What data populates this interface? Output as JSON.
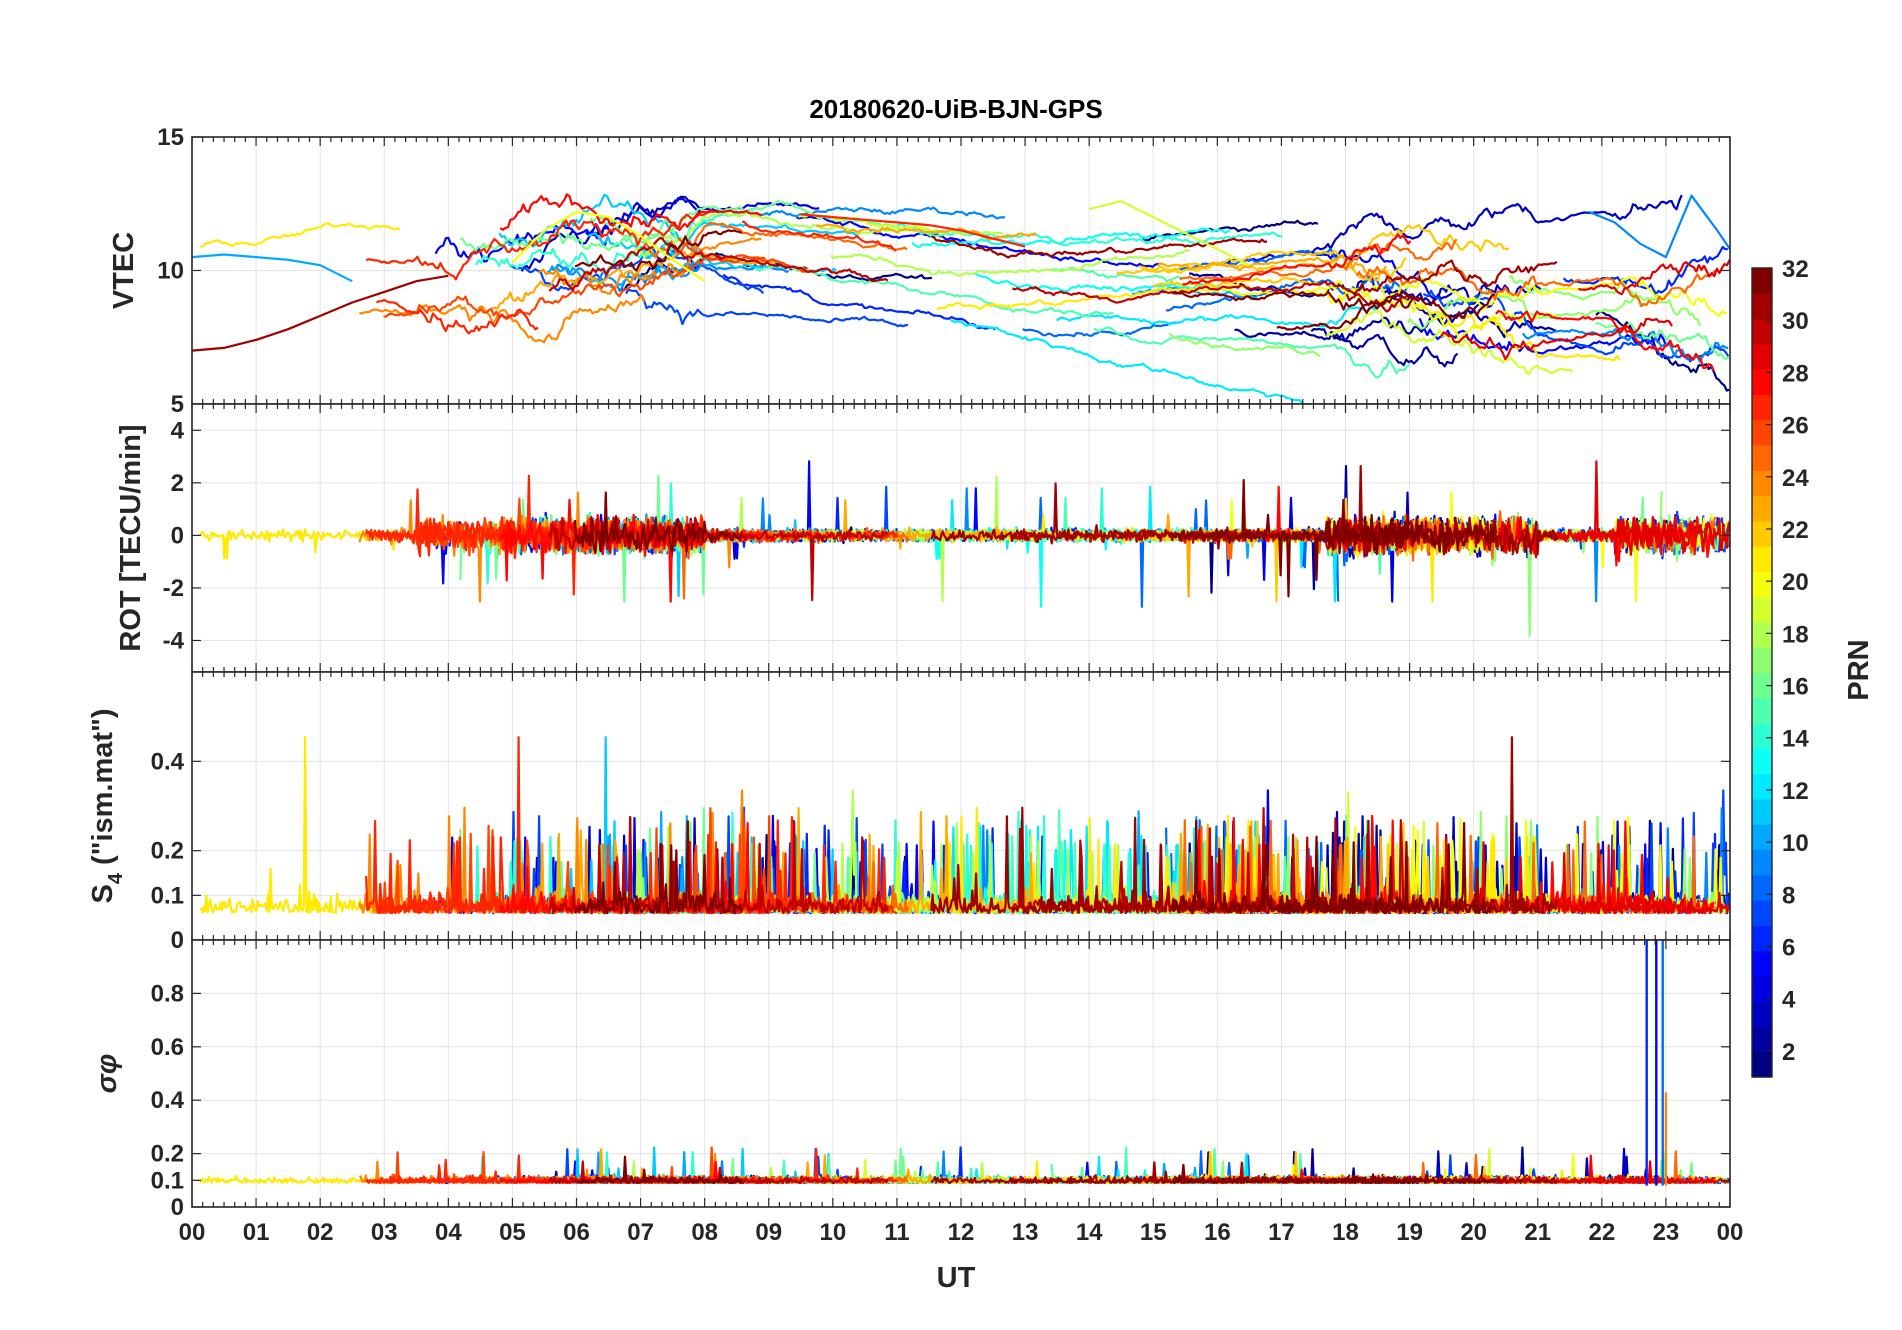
{
  "chart_data": {
    "title": "20180620-UiB-BJN-GPS",
    "type": "line",
    "xlabel": "UT",
    "x_tick_labels": [
      "00",
      "01",
      "02",
      "03",
      "04",
      "05",
      "06",
      "07",
      "08",
      "09",
      "10",
      "11",
      "12",
      "13",
      "14",
      "15",
      "16",
      "17",
      "18",
      "19",
      "20",
      "21",
      "22",
      "23",
      "00"
    ],
    "xlim_hours": [
      0,
      24
    ],
    "grid": true,
    "colorbar": {
      "label": "PRN",
      "range": [
        1,
        32
      ],
      "colormap": "jet",
      "tick_labels": [
        "2",
        "4",
        "6",
        "8",
        "10",
        "12",
        "14",
        "16",
        "18",
        "20",
        "22",
        "24",
        "26",
        "28",
        "30",
        "32"
      ]
    },
    "panels": [
      {
        "id": "vtec",
        "ylabel": "VTEC",
        "ylim": [
          5,
          15
        ],
        "y_ticks": [
          5,
          10,
          15
        ],
        "y_tick_labels": [
          "5",
          "10",
          "15"
        ],
        "description_series": [
          {
            "prn": 10,
            "x": [
              0,
              0.5,
              1,
              1.5,
              2,
              2.5
            ],
            "y": [
              10.5,
              10.6,
              10.5,
              10.4,
              10.2,
              9.6
            ]
          },
          {
            "prn": 31,
            "x": [
              0,
              0.5,
              1,
              1.5,
              2,
              2.5,
              3,
              3.5,
              4
            ],
            "y": [
              7.0,
              7.1,
              7.4,
              7.8,
              8.3,
              8.8,
              9.2,
              9.6,
              9.8
            ]
          },
          {
            "prn": 20,
            "x": [
              5,
              5.5,
              6,
              6.5,
              7,
              7.5,
              8
            ],
            "y": [
              10.3,
              11.5,
              12.2,
              12.0,
              11.3,
              10.4,
              9.6
            ]
          },
          {
            "prn": 27,
            "x": [
              9.5,
              10,
              10.5,
              11,
              11.5,
              12,
              12.5,
              13
            ],
            "y": [
              12.1,
              12.0,
              11.9,
              11.8,
              11.7,
              11.5,
              11.2,
              10.9
            ]
          },
          {
            "prn": 19,
            "x": [
              14,
              14.5,
              15,
              15.5,
              16,
              16.5
            ],
            "y": [
              12.3,
              12.6,
              12.0,
              11.4,
              10.8,
              10.2
            ]
          },
          {
            "prn": 9,
            "x": [
              21.8,
              22.2,
              22.6,
              23.0,
              23.4,
              23.8,
              24
            ],
            "y": [
              12.2,
              11.8,
              11.0,
              10.5,
              12.8,
              11.5,
              10.8
            ]
          }
        ]
      },
      {
        "id": "rot",
        "ylabel": "ROT [TECU/min]",
        "ylim": [
          -5.2,
          5.0
        ],
        "y_ticks": [
          -4,
          -2,
          0,
          2,
          4
        ],
        "y_tick_labels": [
          "-4",
          "-2",
          "0",
          "2",
          "4"
        ]
      },
      {
        "id": "s4",
        "ylabel": "S4 (\"ism.mat\")",
        "ylim": [
          0,
          0.6
        ],
        "y_ticks": [
          0,
          0.1,
          0.2,
          0.4
        ],
        "y_tick_labels": [
          "0",
          "0.1",
          "0.2",
          "0.4"
        ]
      },
      {
        "id": "sigma_phi",
        "ylabel": "σφ",
        "ylim": [
          0,
          1
        ],
        "y_ticks": [
          0,
          0.1,
          0.2,
          0.4,
          0.6,
          0.8
        ],
        "y_tick_labels": [
          "0",
          "0.1",
          "0.2",
          "0.4",
          "0.6",
          "0.8"
        ],
        "notable_spikes": [
          {
            "x": 22.7,
            "y": 1.0,
            "prn": 6
          },
          {
            "x": 22.85,
            "y": 1.0,
            "prn": 5
          },
          {
            "x": 22.95,
            "y": 1.0,
            "prn": 8
          },
          {
            "x": 23.0,
            "y": 0.43,
            "prn": 24
          }
        ]
      }
    ]
  }
}
